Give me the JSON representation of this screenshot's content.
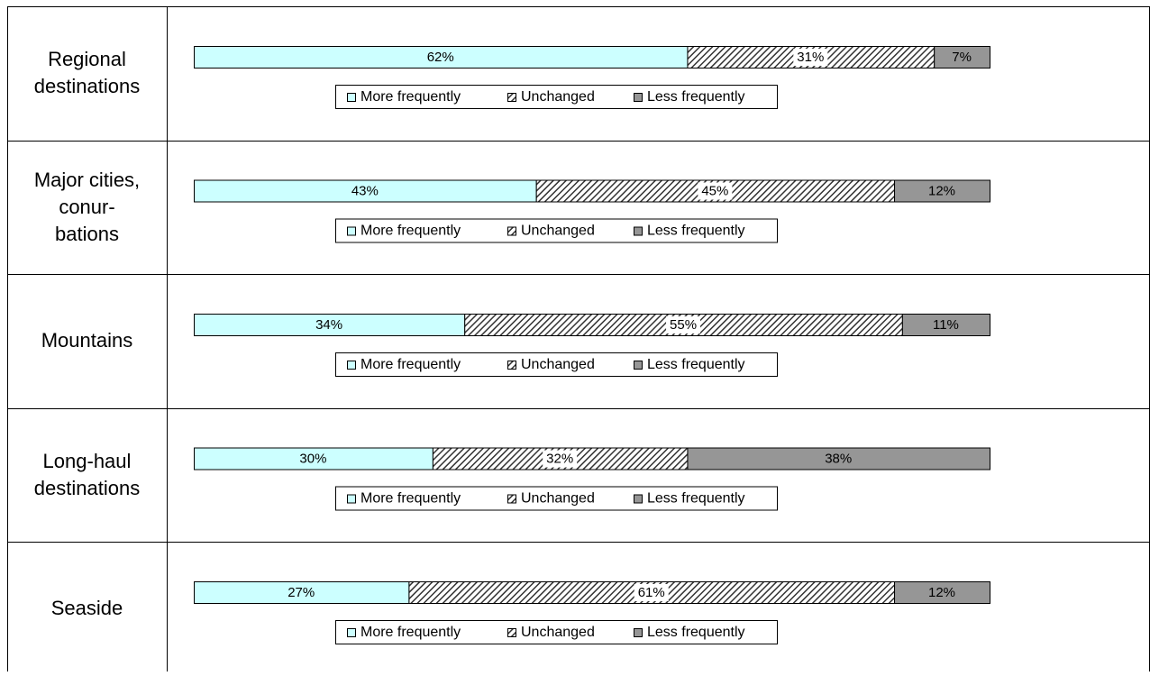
{
  "chart_data": [
    {
      "type": "stacked-bar",
      "title": "Regional\ndestinations",
      "xlim": [
        0,
        100
      ],
      "series": [
        {
          "name": "More frequently",
          "color": "#ccffff",
          "values": [
            62
          ],
          "value_labels": [
            "62%"
          ]
        },
        {
          "name": "Unchanged",
          "color": "#333333",
          "values": [
            31
          ],
          "value_labels": [
            "31%"
          ]
        },
        {
          "name": "Less frequently",
          "color": "#969696",
          "values": [
            7
          ],
          "value_labels": [
            "7%"
          ]
        }
      ]
    },
    {
      "type": "stacked-bar",
      "title": "Major cities,\nconur-\nbations",
      "xlim": [
        0,
        100
      ],
      "series": [
        {
          "name": "More frequently",
          "color": "#ccffff",
          "values": [
            43
          ],
          "value_labels": [
            "43%"
          ]
        },
        {
          "name": "Unchanged",
          "color": "#333333",
          "values": [
            45
          ],
          "value_labels": [
            "45%"
          ]
        },
        {
          "name": "Less frequently",
          "color": "#969696",
          "values": [
            12
          ],
          "value_labels": [
            "12%"
          ]
        }
      ]
    },
    {
      "type": "stacked-bar",
      "title": "Mountains",
      "xlim": [
        0,
        100
      ],
      "series": [
        {
          "name": "More frequently",
          "color": "#ccffff",
          "values": [
            34
          ],
          "value_labels": [
            "34%"
          ]
        },
        {
          "name": "Unchanged",
          "color": "#333333",
          "values": [
            55
          ],
          "value_labels": [
            "55%"
          ]
        },
        {
          "name": "Less frequently",
          "color": "#969696",
          "values": [
            11
          ],
          "value_labels": [
            "11%"
          ]
        }
      ]
    },
    {
      "type": "stacked-bar",
      "title": "Long-haul\ndestinations",
      "xlim": [
        0,
        100
      ],
      "series": [
        {
          "name": "More frequently",
          "color": "#ccffff",
          "values": [
            30
          ],
          "value_labels": [
            "30%"
          ]
        },
        {
          "name": "Unchanged",
          "color": "#333333",
          "values": [
            32
          ],
          "value_labels": [
            "32%"
          ]
        },
        {
          "name": "Less frequently",
          "color": "#969696",
          "values": [
            38
          ],
          "value_labels": [
            "38%"
          ]
        }
      ]
    },
    {
      "type": "stacked-bar",
      "title": "Seaside",
      "xlim": [
        0,
        100
      ],
      "series": [
        {
          "name": "More frequently",
          "color": "#ccffff",
          "values": [
            27
          ],
          "value_labels": [
            "27%"
          ]
        },
        {
          "name": "Unchanged",
          "color": "#333333",
          "values": [
            61
          ],
          "value_labels": [
            "61%"
          ]
        },
        {
          "name": "Less frequently",
          "color": "#969696",
          "values": [
            12
          ],
          "value_labels": [
            "12%"
          ]
        }
      ]
    }
  ]
}
